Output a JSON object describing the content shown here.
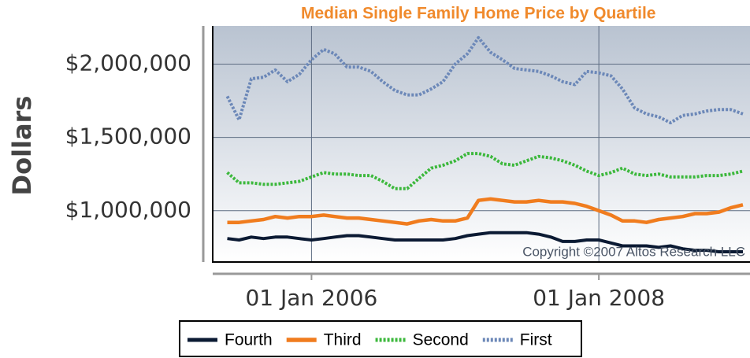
{
  "chart_data": {
    "type": "line",
    "title": "Median Single Family Home Price by Quartile",
    "y_label": "Dollars",
    "annotation": "Copyright ©2007 Altos Research LLC",
    "x": [
      "2005-06-01",
      "2005-07-01",
      "2005-08-01",
      "2005-09-01",
      "2005-10-01",
      "2005-11-01",
      "2005-12-01",
      "2006-01-01",
      "2006-02-01",
      "2006-03-01",
      "2006-04-01",
      "2006-05-01",
      "2006-06-01",
      "2006-07-01",
      "2006-08-01",
      "2006-09-01",
      "2006-10-01",
      "2006-11-01",
      "2006-12-01",
      "2007-01-01",
      "2007-02-01",
      "2007-03-01",
      "2007-04-01",
      "2007-05-01",
      "2007-06-01",
      "2007-07-01",
      "2007-08-01",
      "2007-09-01",
      "2007-10-01",
      "2007-11-01",
      "2007-12-01",
      "2008-01-01",
      "2008-02-01",
      "2008-03-01",
      "2008-04-01",
      "2008-05-01",
      "2008-06-01",
      "2008-07-01",
      "2008-08-01",
      "2008-09-01",
      "2008-10-01",
      "2008-11-01",
      "2008-12-01",
      "2009-01-01"
    ],
    "xlim": [
      "2005-04-25",
      "2009-01-19"
    ],
    "xticks": [
      {
        "value": "2006-01-01",
        "label": "01 Jan 2006"
      },
      {
        "value": "2008-01-01",
        "label": "01 Jan 2008"
      }
    ],
    "ylim": [
      650000,
      2260000
    ],
    "yticks": [
      {
        "value": 1000000,
        "label": "$1,000,000"
      },
      {
        "value": 1500000,
        "label": "$1,500,000"
      },
      {
        "value": 2000000,
        "label": "$2,000,000"
      }
    ],
    "grid": true,
    "legend": "bottom",
    "series": [
      {
        "name": "Fourth",
        "color": "#0b1a33",
        "style": "solid",
        "values": [
          810000,
          800000,
          820000,
          810000,
          820000,
          820000,
          810000,
          800000,
          810000,
          820000,
          830000,
          830000,
          820000,
          810000,
          800000,
          800000,
          800000,
          800000,
          800000,
          810000,
          830000,
          840000,
          850000,
          850000,
          850000,
          850000,
          840000,
          820000,
          790000,
          790000,
          800000,
          800000,
          780000,
          760000,
          760000,
          760000,
          750000,
          760000,
          740000,
          730000,
          730000,
          720000,
          720000,
          720000
        ]
      },
      {
        "name": "Third",
        "color": "#f07c1e",
        "style": "solid",
        "values": [
          920000,
          920000,
          930000,
          940000,
          960000,
          950000,
          960000,
          960000,
          970000,
          960000,
          950000,
          950000,
          940000,
          930000,
          920000,
          910000,
          930000,
          940000,
          930000,
          930000,
          950000,
          1070000,
          1080000,
          1070000,
          1060000,
          1060000,
          1070000,
          1060000,
          1060000,
          1050000,
          1030000,
          1000000,
          970000,
          930000,
          930000,
          920000,
          940000,
          950000,
          960000,
          980000,
          980000,
          990000,
          1020000,
          1040000
        ]
      },
      {
        "name": "Second",
        "color": "#3cb83c",
        "style": "dotted",
        "values": [
          1260000,
          1190000,
          1190000,
          1180000,
          1180000,
          1190000,
          1200000,
          1230000,
          1260000,
          1250000,
          1250000,
          1240000,
          1240000,
          1200000,
          1150000,
          1150000,
          1220000,
          1290000,
          1310000,
          1340000,
          1390000,
          1390000,
          1370000,
          1320000,
          1310000,
          1340000,
          1370000,
          1360000,
          1340000,
          1310000,
          1270000,
          1240000,
          1260000,
          1290000,
          1250000,
          1240000,
          1250000,
          1230000,
          1230000,
          1230000,
          1240000,
          1240000,
          1250000,
          1270000
        ]
      },
      {
        "name": "First",
        "color": "#6c88b8",
        "style": "dotted",
        "values": [
          1780000,
          1620000,
          1900000,
          1910000,
          1960000,
          1880000,
          1930000,
          2030000,
          2100000,
          2070000,
          1980000,
          1980000,
          1950000,
          1880000,
          1820000,
          1790000,
          1790000,
          1830000,
          1880000,
          2000000,
          2070000,
          2180000,
          2080000,
          2030000,
          1970000,
          1960000,
          1950000,
          1920000,
          1880000,
          1860000,
          1950000,
          1940000,
          1920000,
          1830000,
          1700000,
          1660000,
          1640000,
          1600000,
          1650000,
          1660000,
          1680000,
          1690000,
          1690000,
          1660000
        ]
      }
    ]
  }
}
